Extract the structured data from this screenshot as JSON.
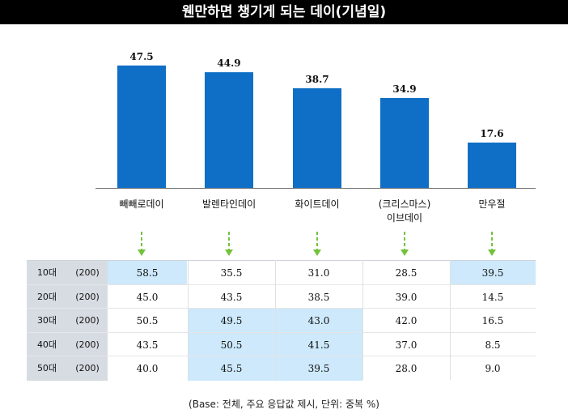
{
  "title": "웬만하면 챙기게 되는 데이(기념일)",
  "chart_data": {
    "type": "bar",
    "categories": [
      "빼빼로데이",
      "발렌타인데이",
      "화이트데이",
      "(크리스마스)\n이브데이",
      "만우절"
    ],
    "values": [
      47.5,
      44.9,
      38.7,
      34.9,
      17.6
    ],
    "value_labels": [
      "47.5",
      "44.9",
      "38.7",
      "34.9",
      "17.6"
    ],
    "ylim": [
      0,
      55
    ],
    "bar_color": "#0f6fc6",
    "arrow_color": "#73c23b"
  },
  "table": {
    "rows": [
      {
        "age": "10대",
        "base": "(200)",
        "values": [
          "58.5",
          "35.5",
          "31.0",
          "28.5",
          "39.5"
        ],
        "highlight": [
          true,
          false,
          false,
          false,
          true
        ]
      },
      {
        "age": "20대",
        "base": "(200)",
        "values": [
          "45.0",
          "43.5",
          "38.5",
          "39.0",
          "14.5"
        ],
        "highlight": [
          false,
          false,
          false,
          false,
          false
        ]
      },
      {
        "age": "30대",
        "base": "(200)",
        "values": [
          "50.5",
          "49.5",
          "43.0",
          "42.0",
          "16.5"
        ],
        "highlight": [
          false,
          true,
          true,
          false,
          false
        ]
      },
      {
        "age": "40대",
        "base": "(200)",
        "values": [
          "43.5",
          "50.5",
          "41.5",
          "37.0",
          "8.5"
        ],
        "highlight": [
          false,
          true,
          true,
          false,
          false
        ]
      },
      {
        "age": "50대",
        "base": "(200)",
        "values": [
          "40.0",
          "45.5",
          "39.5",
          "28.0",
          "9.0"
        ],
        "highlight": [
          false,
          true,
          true,
          false,
          false
        ]
      }
    ],
    "highlight_color": "#cde9fb"
  },
  "footnote": "(Base: 전체, 주요 응답값 제시, 단위: 중복 %)"
}
